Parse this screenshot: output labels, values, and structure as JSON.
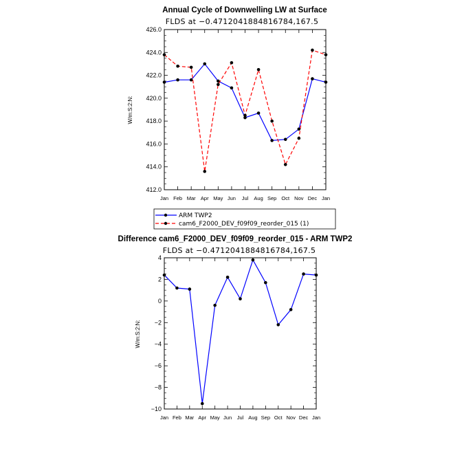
{
  "chart_data": [
    {
      "type": "line",
      "title": "Annual Cycle of Downwelling LW at Surface",
      "subtitle": "FLDS at −0.4712041884816784,167.5",
      "ylabel": "W/m:S:2:N:",
      "xlabel": "",
      "categories": [
        "Jan",
        "Feb",
        "Mar",
        "Apr",
        "May",
        "Jun",
        "Jul",
        "Aug",
        "Sep",
        "Oct",
        "Nov",
        "Dec",
        "Jan"
      ],
      "ylim": [
        412,
        426
      ],
      "yticks": [
        412,
        414,
        416,
        418,
        420,
        422,
        424,
        426
      ],
      "ytick_labels": [
        "412.0",
        "414.0",
        "416.0",
        "418.0",
        "420.0",
        "422.0",
        "424.0",
        "426.0"
      ],
      "grid": false,
      "legend": "below",
      "series": [
        {
          "name": "ARM TWP2",
          "color": "#0000ff",
          "dash": "solid",
          "values": [
            421.4,
            421.6,
            421.6,
            423.0,
            421.5,
            420.9,
            418.3,
            418.7,
            416.3,
            416.4,
            417.3,
            421.7,
            421.4
          ]
        },
        {
          "name": "cam6_F2000_DEV_f09f09_reorder_015 (1)",
          "color": "#ff0000",
          "dash": "dashed",
          "values": [
            423.8,
            422.8,
            422.7,
            413.6,
            421.2,
            423.1,
            418.5,
            422.5,
            418.0,
            414.2,
            416.5,
            424.2,
            423.8
          ]
        }
      ]
    },
    {
      "type": "line",
      "title": "Difference cam6_F2000_DEV_f09f09_reorder_015 - ARM TWP2",
      "subtitle": "FLDS at −0.4712041884816784,167.5",
      "ylabel": "W/m:S:2:N:",
      "xlabel": "",
      "categories": [
        "Jan",
        "Feb",
        "Mar",
        "Apr",
        "May",
        "Jun",
        "Jul",
        "Aug",
        "Sep",
        "Oct",
        "Nov",
        "Dec",
        "Jan"
      ],
      "ylim": [
        -10,
        4
      ],
      "yticks": [
        -10,
        -8,
        -6,
        -4,
        -2,
        0,
        2,
        4
      ],
      "ytick_labels": [
        "−10",
        "−8",
        "−6",
        "−4",
        "−2",
        "0",
        "2",
        "4"
      ],
      "grid": false,
      "series": [
        {
          "color": "#0000ff",
          "dash": "solid",
          "values": [
            2.4,
            1.2,
            1.1,
            -9.5,
            -0.4,
            2.2,
            0.2,
            3.8,
            1.7,
            -2.2,
            -0.8,
            2.5,
            2.4
          ]
        }
      ]
    }
  ]
}
